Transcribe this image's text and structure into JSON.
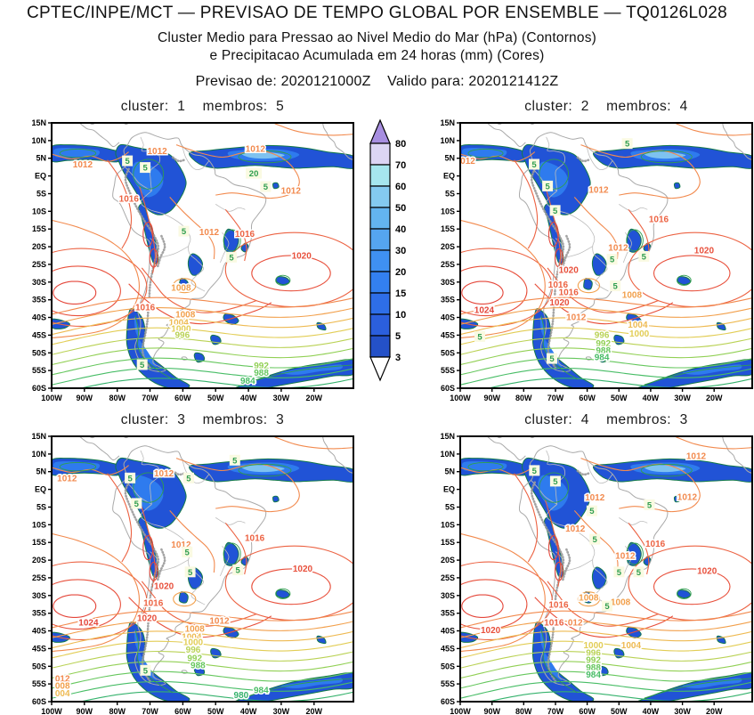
{
  "header": {
    "title": "CPTEC/INPE/MCT — PREVISAO DE TEMPO GLOBAL POR ENSEMBLE — TQ0126L028",
    "subtitle1": "Cluster Medio para Pressao ao Nivel Medio do Mar (hPa) (Contornos)",
    "subtitle2": "e Precipitacao Acumulada em 24 horas (mm) (Cores)",
    "forecast_line": "Previsao de: 2020121000Z    Valido para: 2020121412Z"
  },
  "chart_data": {
    "type": "heatmap",
    "title": "Cluster Medio para Pressao ao Nivel Medio do Mar (hPa) (Contornos) e Precipitacao Acumulada em 24 horas (mm) (Cores)",
    "init_time": "2020121000Z",
    "valid_time": "2020121412Z",
    "axes": {
      "lat_labels": [
        "15N",
        "10N",
        "5N",
        "EQ",
        "5S",
        "10S",
        "15S",
        "20S",
        "25S",
        "30S",
        "35S",
        "40S",
        "45S",
        "50S",
        "55S",
        "60S"
      ],
      "lon_labels": [
        "100W",
        "90W",
        "80W",
        "70W",
        "60W",
        "50W",
        "40W",
        "30W",
        "20W"
      ],
      "lat_range": [
        15,
        -60
      ],
      "lon_range": [
        -100,
        -8
      ]
    },
    "colorbar": {
      "units": "mm",
      "values": [
        3,
        5,
        10,
        15,
        20,
        30,
        40,
        50,
        60,
        70,
        80
      ],
      "colors": [
        "#2451c8",
        "#2b5fdd",
        "#2e6ee8",
        "#3380f0",
        "#3f90f2",
        "#55a5f0",
        "#63b4f0",
        "#84caf0",
        "#a6e6ee",
        "#dcd5f4"
      ],
      "over_color": "#a78ee0",
      "under_color": "#ffffff"
    },
    "contour_levels": [
      980,
      984,
      988,
      992,
      996,
      1000,
      1004,
      1008,
      1012,
      1016,
      1020,
      1024
    ],
    "contour_palette": {
      "1024": "#e4463a",
      "1020": "#e8503c",
      "1016": "#ec6242",
      "1012": "#f28a4e",
      "1008": "#f2a04c",
      "1004": "#eeba52",
      "1000": "#e2cd55",
      "996": "#bad255",
      "992": "#92d055",
      "988": "#66c75e",
      "984": "#48bd66",
      "980": "#35b26c",
      "012": "#f28a4e",
      "008": "#f2a04c",
      "004": "#eeba52"
    },
    "map_colors": {
      "precip_base": "#2153d6",
      "precip_mid": "#2e7bee",
      "precip_light": "#7ec2f0",
      "precip_core": "#9ae2f0",
      "precip_outline": "#157a4a",
      "precip_contour": "#2f9e4f",
      "precip_label_bg": "#fafae2",
      "coast": "#a9a9a9",
      "border": "#bcbcbc",
      "terrain": "#9a9a9a",
      "axis": "#000000"
    },
    "panels": [
      {
        "title": "cluster:  1    membros:  5",
        "cluster": 1,
        "membros": 5,
        "pressure_labels": [
          [
            "1012",
            0.103,
            0.156
          ],
          [
            "1012",
            0.35,
            0.106
          ],
          [
            "1012",
            0.675,
            0.098
          ],
          [
            "1012",
            0.793,
            0.255
          ],
          [
            "1016",
            0.256,
            0.285
          ],
          [
            "1012",
            0.522,
            0.411
          ],
          [
            "1016",
            0.64,
            0.417
          ],
          [
            "1020",
            0.828,
            0.5
          ],
          [
            "1008",
            0.429,
            0.62
          ],
          [
            "1016",
            0.31,
            0.695
          ],
          [
            "1008",
            0.443,
            0.721
          ],
          [
            "1004",
            0.421,
            0.751
          ],
          [
            "1000",
            0.429,
            0.776
          ],
          [
            "996",
            0.433,
            0.799
          ],
          [
            "992",
            0.695,
            0.914
          ],
          [
            "988",
            0.695,
            0.942
          ],
          [
            "984",
            0.65,
            0.972
          ]
        ],
        "precip_labels": [
          [
            "5",
            0.251,
            0.143
          ],
          [
            "5",
            0.31,
            0.168
          ],
          [
            "20",
            0.67,
            0.19
          ],
          [
            "5",
            0.709,
            0.24
          ],
          [
            "5",
            0.438,
            0.408
          ],
          [
            "5",
            0.596,
            0.506
          ],
          [
            "5",
            0.3,
            0.911
          ]
        ]
      },
      {
        "title": "cluster:  2    membros:  4",
        "cluster": 2,
        "membros": 4,
        "pressure_labels": [
          [
            "012",
            0.026,
            0.142
          ],
          [
            "1012",
            0.474,
            0.251
          ],
          [
            "1016",
            0.68,
            0.363
          ],
          [
            "1012",
            0.541,
            0.469
          ],
          [
            "1020",
            0.835,
            0.48
          ],
          [
            "1020",
            0.371,
            0.553
          ],
          [
            "1016",
            0.335,
            0.609
          ],
          [
            "1016",
            0.371,
            0.637
          ],
          [
            "1008",
            0.588,
            0.648
          ],
          [
            "1020",
            0.34,
            0.676
          ],
          [
            "1024",
            0.082,
            0.704
          ],
          [
            "1012",
            0.397,
            0.732
          ],
          [
            "1004",
            0.608,
            0.76
          ],
          [
            "1000",
            0.613,
            0.793
          ],
          [
            "996",
            0.485,
            0.799
          ],
          [
            "992",
            0.49,
            0.83
          ],
          [
            "988",
            0.49,
            0.857
          ],
          [
            "984",
            0.485,
            0.883
          ]
        ],
        "precip_labels": [
          [
            "5",
            0.253,
            0.156
          ],
          [
            "5",
            0.572,
            0.078
          ],
          [
            "5",
            0.299,
            0.238
          ],
          [
            "5",
            0.325,
            0.33
          ],
          [
            "5",
            0.629,
            0.503
          ],
          [
            "5",
            0.52,
            0.514
          ],
          [
            "5",
            0.531,
            0.614
          ],
          [
            "5",
            0.067,
            0.805
          ],
          [
            "5",
            0.314,
            0.888
          ]
        ]
      },
      {
        "title": "cluster:  3    membros:  3",
        "cluster": 3,
        "membros": 3,
        "pressure_labels": [
          [
            "1012",
            0.051,
            0.157
          ],
          [
            "1012",
            0.372,
            0.14
          ],
          [
            "1016",
            0.673,
            0.382
          ],
          [
            "1012",
            0.429,
            0.407
          ],
          [
            "1020",
            0.832,
            0.498
          ],
          [
            "1020",
            0.372,
            0.564
          ],
          [
            "1016",
            0.337,
            0.627
          ],
          [
            "1024",
            0.122,
            0.702
          ],
          [
            "1020",
            0.316,
            0.685
          ],
          [
            "1012",
            0.556,
            0.694
          ],
          [
            "1008",
            0.474,
            0.725
          ],
          [
            "1004",
            0.464,
            0.755
          ],
          [
            "1000",
            0.469,
            0.775
          ],
          [
            "996",
            0.469,
            0.803
          ],
          [
            "992",
            0.474,
            0.835
          ],
          [
            "988",
            0.485,
            0.863
          ],
          [
            "984",
            0.694,
            0.957
          ],
          [
            "980",
            0.628,
            0.975
          ],
          [
            "012",
            0.036,
            0.912
          ],
          [
            "008",
            0.036,
            0.94
          ],
          [
            "004",
            0.036,
            0.968
          ]
        ],
        "precip_labels": [
          [
            "5",
            0.26,
            0.157
          ],
          [
            "5",
            0.454,
            0.157
          ],
          [
            "5",
            0.607,
            0.09
          ],
          [
            "5",
            0.281,
            0.253
          ],
          [
            "5",
            0.449,
            0.436
          ],
          [
            "5",
            0.617,
            0.503
          ],
          [
            "5",
            0.459,
            0.511
          ],
          [
            "5",
            0.311,
            0.882
          ]
        ]
      },
      {
        "title": "cluster:  4    membros:  3",
        "cluster": 4,
        "membros": 3,
        "pressure_labels": [
          [
            "1012",
            0.808,
            0.073
          ],
          [
            "1012",
            0.461,
            0.23
          ],
          [
            "1012",
            0.777,
            0.228
          ],
          [
            "1012",
            0.394,
            0.348
          ],
          [
            "1016",
            0.668,
            0.404
          ],
          [
            "1012",
            0.565,
            0.449
          ],
          [
            "1020",
            0.845,
            0.506
          ],
          [
            "1008",
            0.44,
            0.607
          ],
          [
            "1008",
            0.549,
            0.624
          ],
          [
            "1016",
            0.337,
            0.635
          ],
          [
            "1016",
            0.321,
            0.702
          ],
          [
            "012",
            0.394,
            0.702
          ],
          [
            "1020",
            0.104,
            0.73
          ],
          [
            "1000",
            0.456,
            0.787
          ],
          [
            "1004",
            0.585,
            0.787
          ],
          [
            "996",
            0.456,
            0.815
          ],
          [
            "992",
            0.456,
            0.843
          ],
          [
            "988",
            0.456,
            0.871
          ],
          [
            "984",
            0.456,
            0.897
          ]
        ],
        "precip_labels": [
          [
            "5",
            0.254,
            0.129
          ],
          [
            "5",
            0.326,
            0.169
          ],
          [
            "5",
            0.648,
            0.258
          ],
          [
            "5",
            0.451,
            0.281
          ],
          [
            "5",
            0.461,
            0.388
          ],
          [
            "5",
            0.544,
            0.511
          ],
          [
            "5",
            0.611,
            0.511
          ],
          [
            "5",
            0.503,
            0.64
          ]
        ]
      }
    ]
  }
}
